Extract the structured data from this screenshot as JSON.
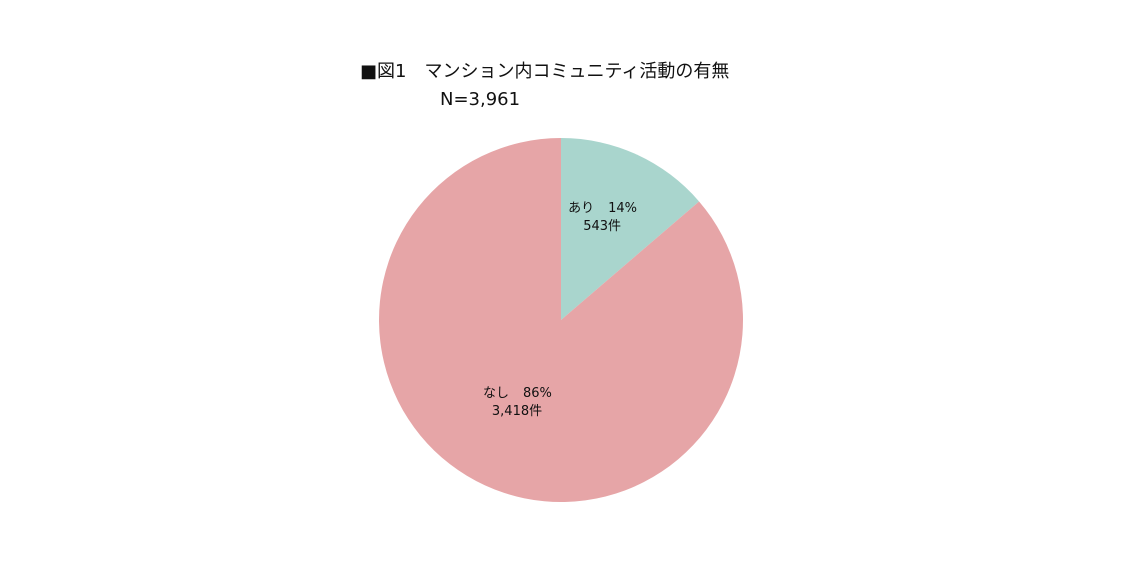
{
  "chart_data": {
    "type": "pie",
    "title": "■図1　マンション内コミュニティ活動の有無",
    "subtitle": "N=3,961",
    "categories": [
      "あり",
      "なし"
    ],
    "values": [
      543,
      3418
    ],
    "value_labels": [
      "543件",
      "3,418件"
    ],
    "percents": [
      14,
      86
    ],
    "percent_labels": [
      "14%",
      "86%"
    ],
    "colors": [
      "#a9d5cd",
      "#e6a5a7"
    ]
  }
}
